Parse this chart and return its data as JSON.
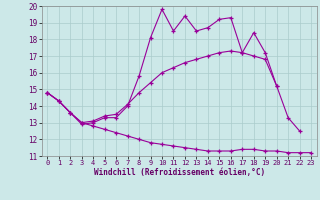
{
  "xlabel": "Windchill (Refroidissement éolien,°C)",
  "bg_color": "#cce8e8",
  "line_color": "#990099",
  "grid_color": "#aacccc",
  "xlim": [
    -0.5,
    23.5
  ],
  "ylim": [
    11,
    20
  ],
  "xticks": [
    0,
    1,
    2,
    3,
    4,
    5,
    6,
    7,
    8,
    9,
    10,
    11,
    12,
    13,
    14,
    15,
    16,
    17,
    18,
    19,
    20,
    21,
    22,
    23
  ],
  "yticks": [
    11,
    12,
    13,
    14,
    15,
    16,
    17,
    18,
    19,
    20
  ],
  "line1_x": [
    0,
    1,
    2,
    3,
    4,
    5,
    6,
    7,
    8,
    9,
    10,
    11,
    12,
    13,
    14,
    15,
    16,
    17,
    18,
    19,
    20,
    21,
    22
  ],
  "line1_y": [
    14.8,
    14.3,
    13.6,
    12.9,
    13.0,
    13.3,
    13.3,
    14.0,
    15.8,
    18.1,
    19.8,
    18.5,
    19.4,
    18.5,
    18.7,
    19.2,
    19.3,
    17.2,
    18.4,
    17.2,
    15.2,
    13.3,
    12.5
  ],
  "line2_x": [
    0,
    1,
    2,
    3,
    4,
    5,
    6,
    7,
    8,
    9,
    10,
    11,
    12,
    13,
    14,
    15,
    16,
    17,
    18,
    19,
    20
  ],
  "line2_y": [
    14.8,
    14.3,
    13.6,
    13.0,
    13.1,
    13.4,
    13.5,
    14.1,
    14.8,
    15.4,
    16.0,
    16.3,
    16.6,
    16.8,
    17.0,
    17.2,
    17.3,
    17.2,
    17.0,
    16.8,
    15.2
  ],
  "line3_x": [
    0,
    1,
    2,
    3,
    4,
    5,
    6,
    7,
    8,
    9,
    10,
    11,
    12,
    13,
    14,
    15,
    16,
    17,
    18,
    19,
    20,
    21,
    22,
    23
  ],
  "line3_y": [
    14.8,
    14.3,
    13.6,
    13.0,
    12.8,
    12.6,
    12.4,
    12.2,
    12.0,
    11.8,
    11.7,
    11.6,
    11.5,
    11.4,
    11.3,
    11.3,
    11.3,
    11.4,
    11.4,
    11.3,
    11.3,
    11.2,
    11.2,
    11.2
  ]
}
